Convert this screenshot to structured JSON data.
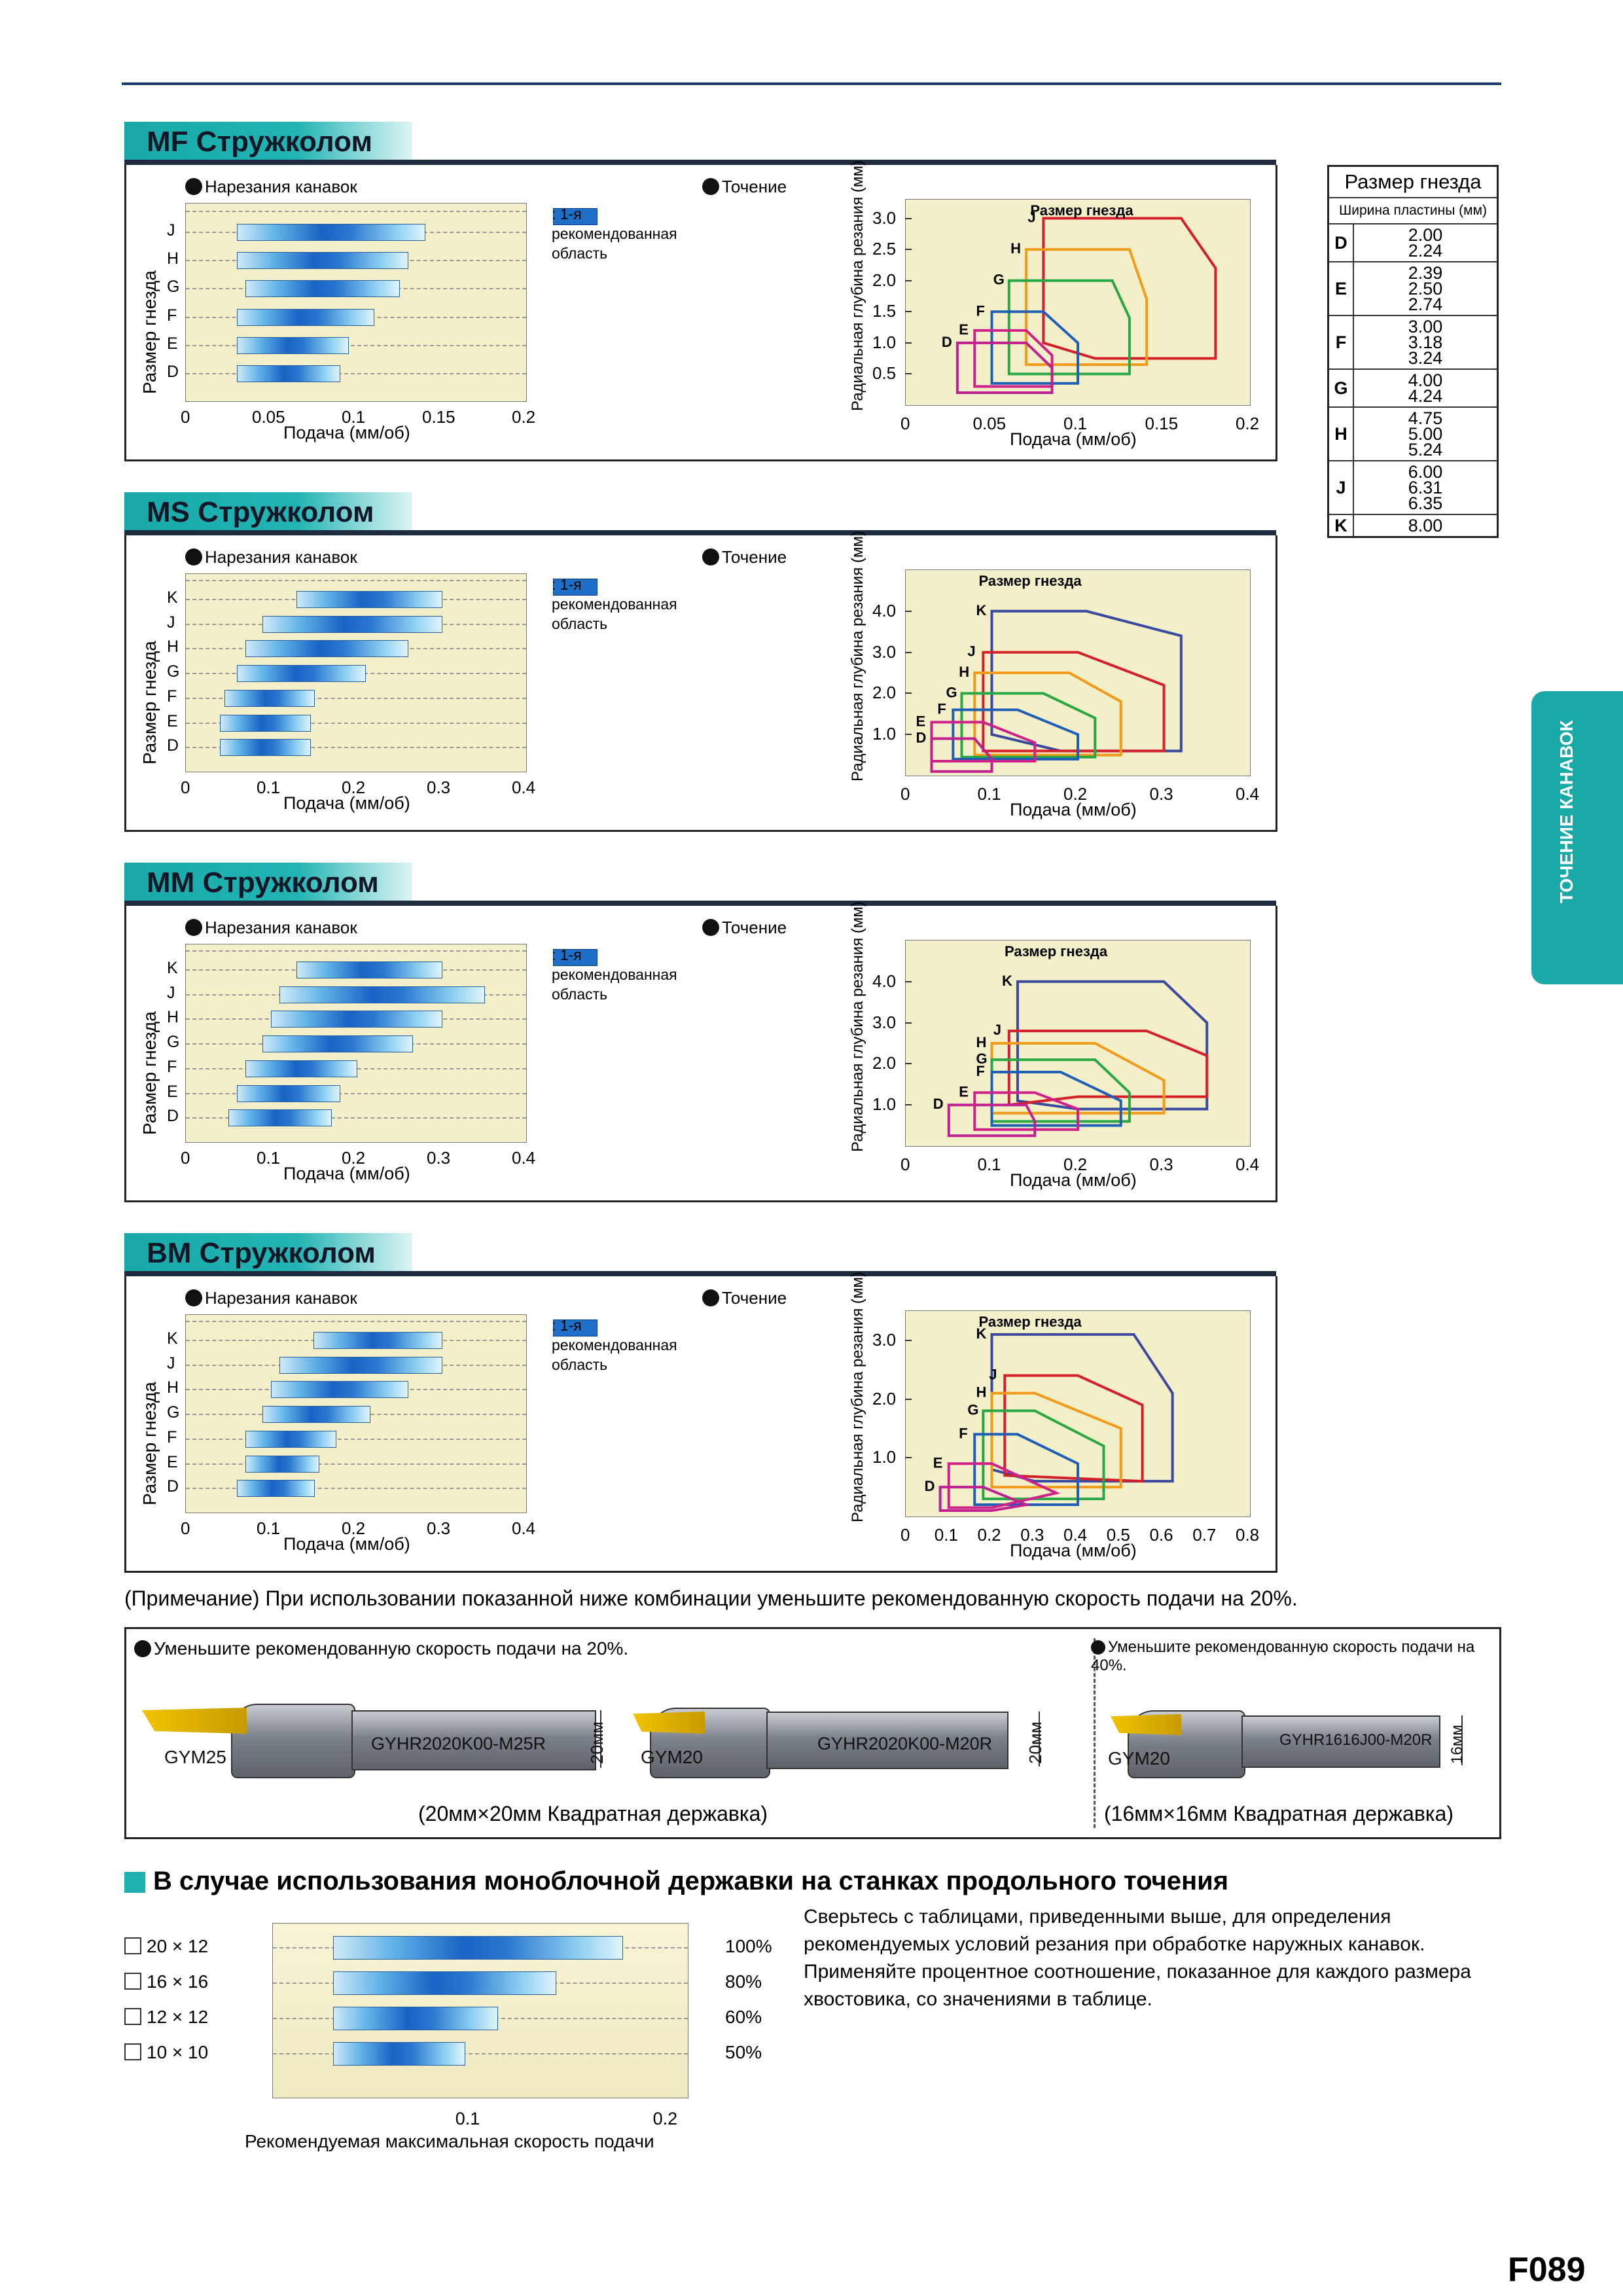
{
  "sections": [
    {
      "title": "MF Стружколом",
      "groove_label": "Нарезания канавок",
      "turn_label": "Точение",
      "groove_sizes": [
        "J",
        "H",
        "G",
        "F",
        "E",
        "D"
      ],
      "groove_ticks": [
        "0",
        "0.05",
        "0.1",
        "0.15",
        "0.2"
      ],
      "turn_yticks": [
        "3.0",
        "2.5",
        "2.0",
        "1.5",
        "1.0",
        "0.5"
      ],
      "turn_xticks": [
        "0",
        "0.05",
        "0.1",
        "0.15",
        "0.2"
      ],
      "turn_sizes": [
        "J",
        "H",
        "G",
        "F",
        "E",
        "D"
      ]
    },
    {
      "title": "MS Стружколом",
      "groove_label": "Нарезания канавок",
      "turn_label": "Точение",
      "groove_sizes": [
        "K",
        "J",
        "H",
        "G",
        "F",
        "E",
        "D"
      ],
      "groove_ticks": [
        "0",
        "0.1",
        "0.2",
        "0.3",
        "0.4"
      ],
      "turn_yticks": [
        "4.0",
        "3.0",
        "2.0",
        "1.0"
      ],
      "turn_xticks": [
        "0",
        "0.1",
        "0.2",
        "0.3",
        "0.4"
      ],
      "turn_sizes": [
        "K",
        "J",
        "H",
        "G",
        "F",
        "E",
        "D"
      ]
    },
    {
      "title": "MM Стружколом",
      "groove_label": "Нарезания канавок",
      "turn_label": "Точение",
      "groove_sizes": [
        "K",
        "J",
        "H",
        "G",
        "F",
        "E",
        "D"
      ],
      "groove_ticks": [
        "0",
        "0.1",
        "0.2",
        "0.3",
        "0.4"
      ],
      "turn_yticks": [
        "4.0",
        "3.0",
        "2.0",
        "1.0"
      ],
      "turn_xticks": [
        "0",
        "0.1",
        "0.2",
        "0.3",
        "0.4"
      ],
      "turn_sizes": [
        "K",
        "J",
        "H",
        "G",
        "F",
        "E",
        "D"
      ]
    },
    {
      "title": "BM Стружколом",
      "groove_label": "Нарезания канавок",
      "turn_label": "Точение",
      "groove_sizes": [
        "K",
        "J",
        "H",
        "G",
        "F",
        "E",
        "D"
      ],
      "groove_ticks": [
        "0",
        "0.1",
        "0.2",
        "0.3",
        "0.4"
      ],
      "turn_yticks": [
        "3.0",
        "2.0",
        "1.0"
      ],
      "turn_xticks": [
        "0",
        "0.1",
        "0.2",
        "0.3",
        "0.4",
        "0.5",
        "0.6",
        "0.7",
        "0.8"
      ],
      "turn_sizes": [
        "K",
        "J",
        "H",
        "G",
        "F",
        "E",
        "D"
      ]
    }
  ],
  "common": {
    "ylabel_groove": "Размер гнезда",
    "ylabel_turn": "Радиальная глубина резания (мм)",
    "xlabel": "Подача (мм/об)",
    "legend": ": 1-я\nрекомендованная\nобласть",
    "size_title": "Размер гнезда"
  },
  "size_table": {
    "header": "Размер гнезда",
    "subheader": "Ширина пластины (мм)",
    "rows": [
      {
        "size": "D",
        "widths": "2.00\n2.24"
      },
      {
        "size": "E",
        "widths": "2.39\n2.50\n2.74"
      },
      {
        "size": "F",
        "widths": "3.00\n3.18\n3.24"
      },
      {
        "size": "G",
        "widths": "4.00\n4.24"
      },
      {
        "size": "H",
        "widths": "4.75\n5.00\n5.24"
      },
      {
        "size": "J",
        "widths": "6.00\n6.31\n6.35"
      },
      {
        "size": "K",
        "widths": "8.00"
      }
    ]
  },
  "side_tab": "ТОЧЕНИЕ КАНАВОК",
  "note": "(Примечание) При использовании показанной ниже комбинации уменьшите рекомендованную скорость подачи на 20%.",
  "combo": {
    "left_title": "Уменьшите рекомендованную скорость подачи на 20%.",
    "right_title": "Уменьшите рекомендованную скорость подачи на 40%.",
    "h1_insert": "GYM25",
    "h1_code": "GYHR2020K00-M25R",
    "h1_dim": "20мм",
    "h2_insert": "GYM20",
    "h2_code": "GYHR2020K00-M20R",
    "h2_dim": "20мм",
    "h3_insert": "GYM20",
    "h3_code": "GYHR1616J00-M20R",
    "h3_dim": "16мм",
    "left_caption": "(20мм×20мм Квадратная державка)",
    "right_caption": "(16мм×16мм Квадратная державка)"
  },
  "mono": {
    "title": "В случае использования моноблочной державки на станках продольного точения",
    "rows": [
      {
        "size": "20 × 12",
        "pct": "100%",
        "value": 0.21
      },
      {
        "size": "16 × 16",
        "pct": "80%",
        "value": 0.17
      },
      {
        "size": "12 × 12",
        "pct": "60%",
        "value": 0.135
      },
      {
        "size": "10 × 10",
        "pct": "50%",
        "value": 0.115
      }
    ],
    "xticks": [
      "0.1",
      "0.2"
    ],
    "xlabel": "Рекомендуемая максимальная скорость подачи",
    "text": "Сверьтесь с таблицами, приведенными выше, для определения рекомендуемых условий резания при обработке наружных канавок. Применяйте процентное соотношение, показанное для каждого размера хвостовика, со значениями в таблице."
  },
  "page_number": "F089",
  "colors": {
    "teal": "#1fb0b0",
    "navy": "#1f2c3f",
    "plot_bg": "#f3efc8",
    "K": "#3a4aa0",
    "J": "#d4202a",
    "H": "#f29a1a",
    "G": "#28a745",
    "F": "#1f5fb5",
    "E": "#d0208a",
    "D": "#c02090"
  }
}
